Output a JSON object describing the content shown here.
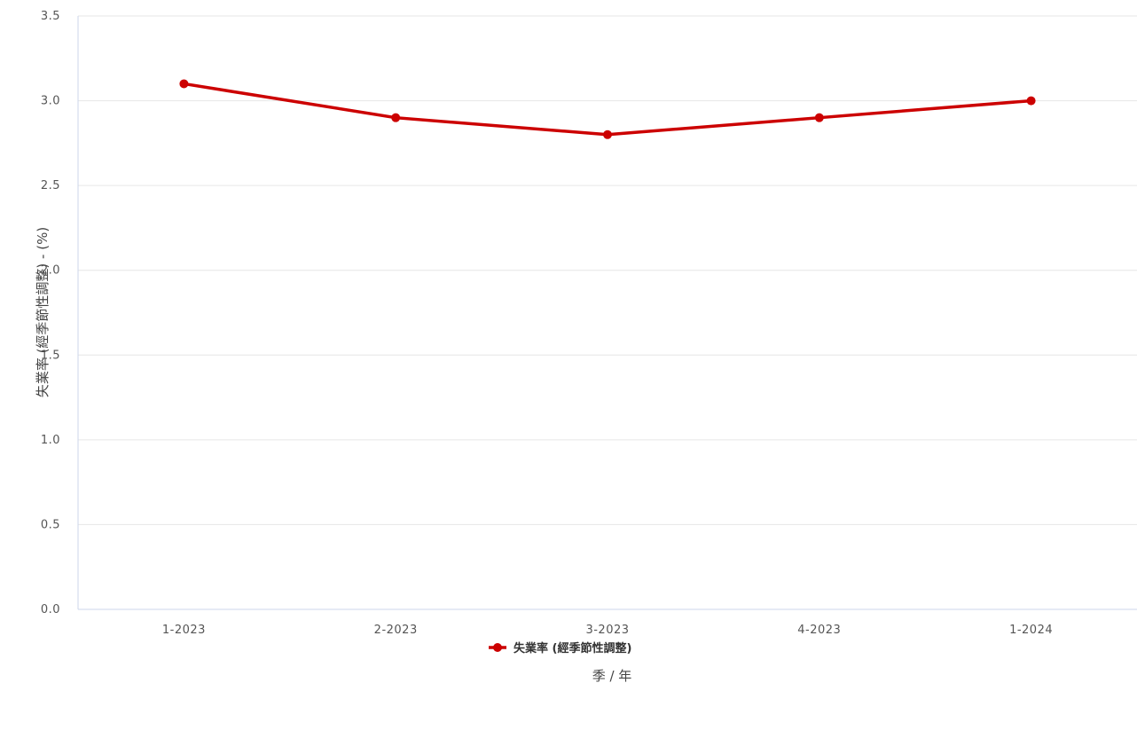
{
  "chart_data": {
    "type": "line",
    "categories": [
      "1-2023",
      "2-2023",
      "3-2023",
      "4-2023",
      "1-2024"
    ],
    "series": [
      {
        "name": "失業率 (經季節性調整)",
        "values": [
          3.1,
          2.9,
          2.8,
          2.9,
          3.0
        ],
        "color": "#cc0000"
      }
    ],
    "xlabel": "季 / 年",
    "ylabel": "失業率 (經季節性調整) - (%)",
    "ylim": [
      0,
      3.5
    ],
    "yticks": [
      "0.0",
      "0.5",
      "1.0",
      "1.5",
      "2.0",
      "2.5",
      "3.0",
      "3.5"
    ],
    "grid": true,
    "legend_position": "bottom-center"
  }
}
